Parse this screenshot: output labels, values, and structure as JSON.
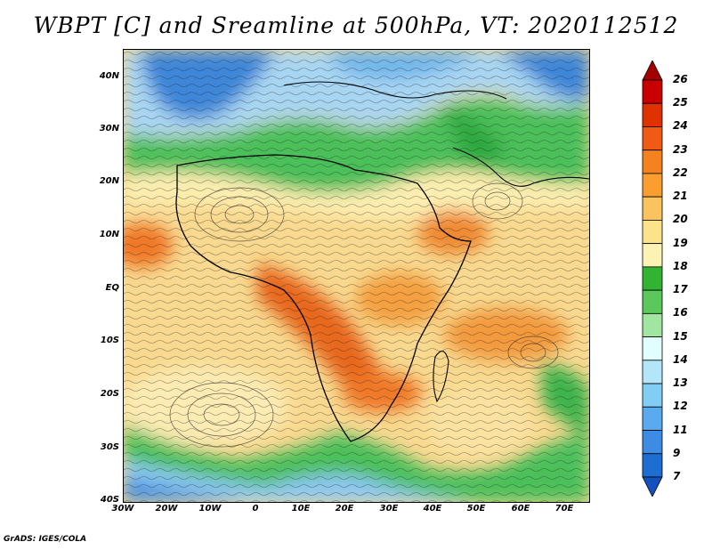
{
  "title": "WBPT [C] and Sreamline at 500hPa, VT: 2020112512",
  "footer": "GrADS: IGES/COLA",
  "lat_labels": [
    "40N",
    "30N",
    "20N",
    "10N",
    "EQ",
    "10S",
    "20S",
    "30S",
    "40S"
  ],
  "lon_labels": [
    "30W",
    "20W",
    "10W",
    "0",
    "10E",
    "20E",
    "30E",
    "40E",
    "50E",
    "60E",
    "70E"
  ],
  "colorbar": {
    "levels": [
      "26",
      "25",
      "24",
      "23",
      "22",
      "21",
      "20",
      "19",
      "18",
      "17",
      "16",
      "15",
      "14",
      "13",
      "12",
      "11",
      "9",
      "7"
    ],
    "colors": [
      "#a50000",
      "#c80000",
      "#e03200",
      "#f05a14",
      "#f5821e",
      "#fa9e32",
      "#fbc35f",
      "#fde28c",
      "#fcf2b4",
      "#32b432",
      "#5ac85a",
      "#a0e6a0",
      "#e1ffff",
      "#b4e6fa",
      "#82cdf5",
      "#5aaaf0",
      "#3c8ce6",
      "#1e6ed2",
      "#1450be"
    ]
  },
  "colors": {
    "ocean_warm": "#f6d08a",
    "band_green": "#3cb44b",
    "cold_blue": "#3c8ce6",
    "hot_orange": "#f07828"
  }
}
